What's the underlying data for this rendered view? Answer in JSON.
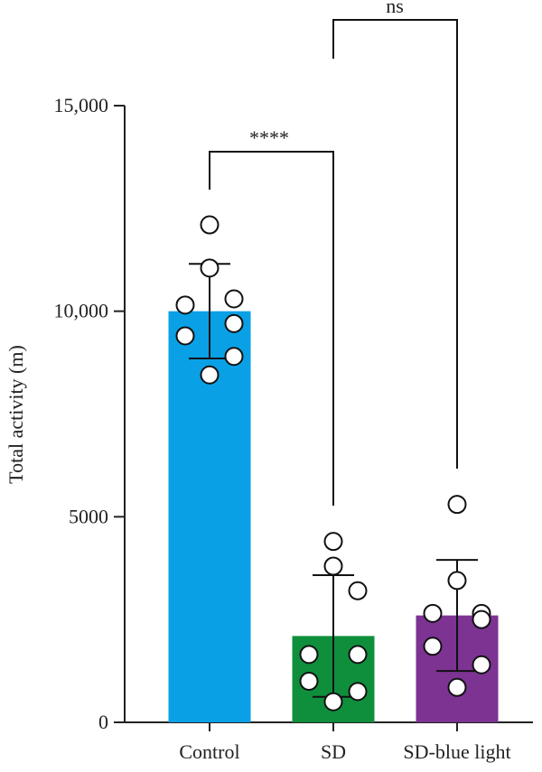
{
  "chart_data": {
    "type": "bar",
    "ylabel": "Total activity (m)",
    "ylim": [
      0,
      15000
    ],
    "yticks": [
      0,
      5000,
      10000,
      15000
    ],
    "ytick_labels": [
      "0",
      "5000",
      "10,000",
      "15,000"
    ],
    "categories": [
      "Control",
      "SD",
      "SD-blue light"
    ],
    "colors": [
      "#0aa0e6",
      "#0f8f3c",
      "#7d3392"
    ],
    "bars": [
      {
        "category": "Control",
        "mean": 10000,
        "sd": 1150,
        "points": [
          12100,
          11050,
          10300,
          10150,
          9700,
          9400,
          8900,
          8450
        ]
      },
      {
        "category": "SD",
        "mean": 2100,
        "sd": 1480,
        "points": [
          4400,
          3800,
          3200,
          1650,
          1650,
          1000,
          750,
          500
        ]
      },
      {
        "category": "SD-blue light",
        "mean": 2600,
        "sd": 1350,
        "points": [
          5300,
          3450,
          2650,
          2650,
          2500,
          1850,
          1400,
          850
        ]
      }
    ],
    "significance": [
      {
        "from": "Control",
        "to": "SD",
        "label": "****"
      },
      {
        "from": "SD",
        "to": "SD-blue light",
        "label": "ns"
      }
    ]
  }
}
